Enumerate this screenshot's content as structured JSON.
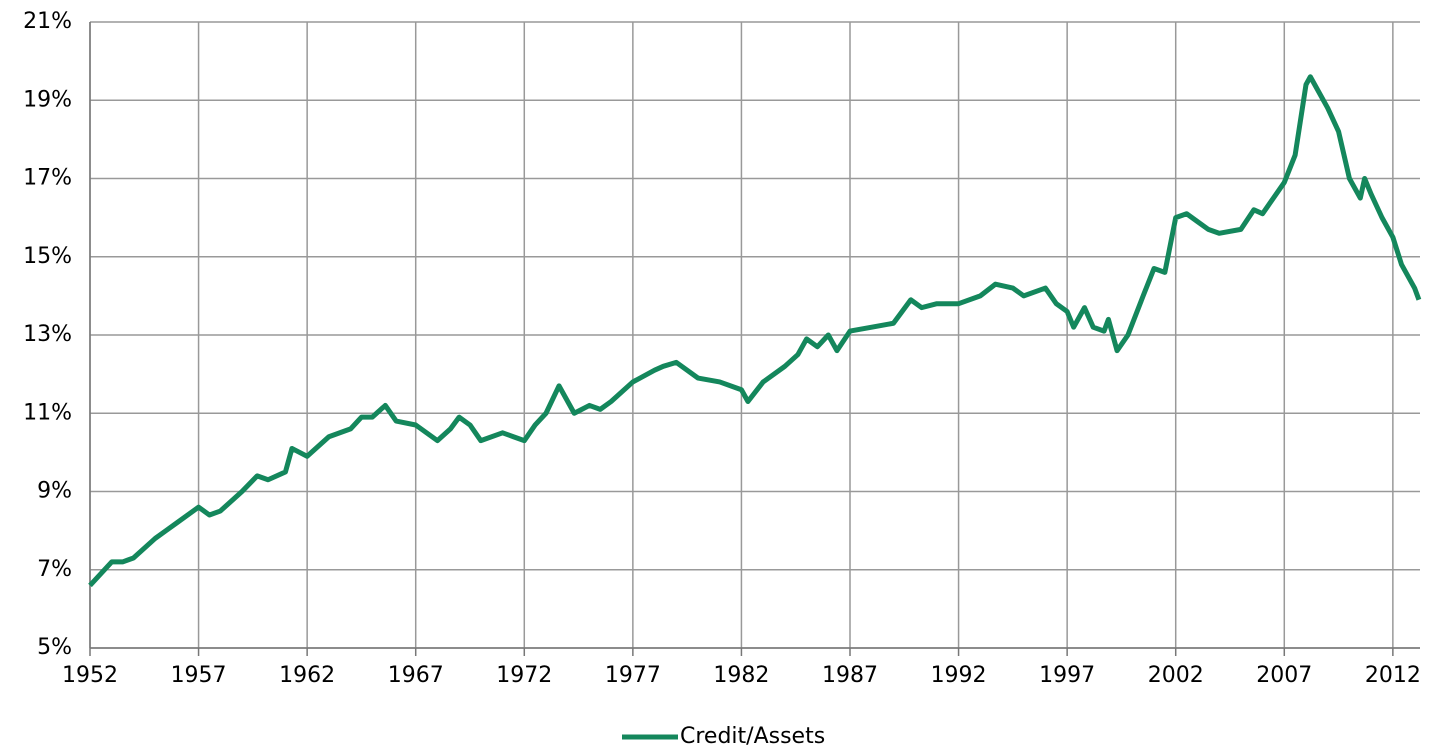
{
  "chart_data": {
    "type": "line",
    "x": [
      1952,
      1952.5,
      1953,
      1953.5,
      1954,
      1955,
      1955.5,
      1956,
      1957,
      1957.5,
      1958,
      1959,
      1959.7,
      1960.2,
      1961,
      1961.3,
      1962,
      1963,
      1964,
      1964.5,
      1965,
      1965.6,
      1966.1,
      1967,
      1968,
      1968.6,
      1969,
      1969.5,
      1970,
      1971,
      1971.5,
      1972,
      1972.5,
      1973,
      1973.6,
      1974.3,
      1975,
      1975.5,
      1976,
      1977,
      1978,
      1978.4,
      1979,
      1980,
      1981,
      1982,
      1982.3,
      1983,
      1984,
      1984.6,
      1985,
      1985.5,
      1986,
      1986.4,
      1987,
      1988,
      1989,
      1989.8,
      1990.3,
      1991,
      1992,
      1993,
      1993.7,
      1994.5,
      1995,
      1996,
      1996.5,
      1997,
      1997.3,
      1997.8,
      1998.2,
      1998.7,
      1998.9,
      1999.3,
      1999.8,
      2000.5,
      2001,
      2001.5,
      2002,
      2002.5,
      2003,
      2003.5,
      2004,
      2005,
      2005.6,
      2006,
      2007,
      2007.5,
      2008,
      2008.2,
      2009,
      2009.5,
      2010,
      2010.5,
      2010.7,
      2011,
      2011.5,
      2012,
      2012.4,
      2013,
      2013.2
    ],
    "series": [
      {
        "name": "Credit/Assets",
        "color": "#14875c",
        "values": [
          6.6,
          6.9,
          7.2,
          7.2,
          7.3,
          7.8,
          8.0,
          8.2,
          8.6,
          8.4,
          8.5,
          9.0,
          9.4,
          9.3,
          9.5,
          10.1,
          9.9,
          10.4,
          10.6,
          10.9,
          10.9,
          11.2,
          10.8,
          10.7,
          10.3,
          10.6,
          10.9,
          10.7,
          10.3,
          10.5,
          10.4,
          10.3,
          10.7,
          11.0,
          11.7,
          11.0,
          11.2,
          11.1,
          11.3,
          11.8,
          12.1,
          12.2,
          12.3,
          11.9,
          11.8,
          11.6,
          11.3,
          11.8,
          12.2,
          12.5,
          12.9,
          12.7,
          13.0,
          12.6,
          13.1,
          13.2,
          13.3,
          13.9,
          13.7,
          13.8,
          13.8,
          14.0,
          14.3,
          14.2,
          14.0,
          14.2,
          13.8,
          13.6,
          13.2,
          13.7,
          13.2,
          13.1,
          13.4,
          12.6,
          13.0,
          14.0,
          14.7,
          14.6,
          16.0,
          16.1,
          15.9,
          15.7,
          15.6,
          15.7,
          16.2,
          16.1,
          16.9,
          17.6,
          19.4,
          19.6,
          18.8,
          18.2,
          17.0,
          16.5,
          17.0,
          16.6,
          16.0,
          15.5,
          14.8,
          14.2,
          13.9
        ]
      }
    ],
    "xlim": [
      1952,
      2013.25
    ],
    "xticks": [
      1952,
      1957,
      1962,
      1967,
      1972,
      1977,
      1982,
      1987,
      1992,
      1997,
      2002,
      2007,
      2012
    ],
    "ylim": [
      5,
      21
    ],
    "yticks": [
      {
        "value": 5,
        "label": "5%"
      },
      {
        "value": 7,
        "label": "7%"
      },
      {
        "value": 9,
        "label": "9%"
      },
      {
        "value": 11,
        "label": "11%"
      },
      {
        "value": 13,
        "label": "13%"
      },
      {
        "value": 15,
        "label": "15%"
      },
      {
        "value": 17,
        "label": "17%"
      },
      {
        "value": 19,
        "label": "19%"
      },
      {
        "value": 21,
        "label": "21%"
      }
    ],
    "grid": true,
    "legend": "bottom"
  }
}
